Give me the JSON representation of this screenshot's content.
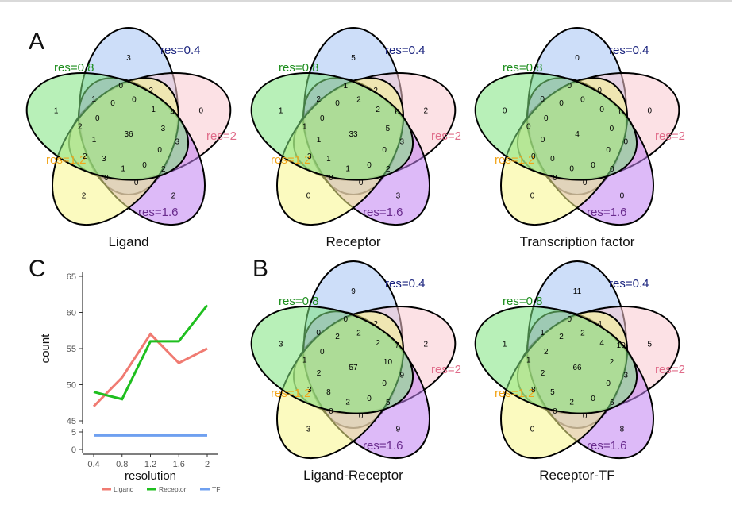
{
  "panels": {
    "a": "A",
    "b": "B",
    "c": "C"
  },
  "set_labels": [
    "res=0.4",
    "res=2",
    "res=1.6",
    "res=1.2",
    "res=0.8"
  ],
  "set_colors": {
    "fill": [
      "#a4c2f4",
      "#f9c8d0",
      "#c182f3",
      "#f7f58a",
      "#7ee37e"
    ],
    "label": [
      "#1a237e",
      "#e06c8a",
      "#6a2c8e",
      "#f2a51a",
      "#1e8e1e"
    ]
  },
  "venn": [
    {
      "title": "Ligand",
      "regions": {
        "only": [
          3,
          0,
          2,
          2,
          1
        ],
        "center": "36",
        "inner": [
          [
            "0",
            "0",
            "2",
            "1",
            "4",
            "3",
            "3",
            "0",
            "2",
            "0",
            "0",
            "1",
            "0",
            "3",
            "2",
            "1",
            "2",
            "0",
            "1",
            "0"
          ]
        ]
      }
    },
    {
      "title": "Receptor",
      "regions": {
        "only": [
          5,
          2,
          3,
          0,
          1
        ],
        "center": "33",
        "inner": [
          [
            "1",
            "2",
            "2",
            "2",
            "6",
            "5",
            "3",
            "0",
            "2",
            "0",
            "0",
            "1",
            "0",
            "1",
            "3",
            "1",
            "1",
            "0",
            "2",
            "0"
          ]
        ]
      }
    },
    {
      "title": "Transcription factor",
      "regions": {
        "only": [
          0,
          0,
          0,
          0,
          0
        ],
        "center": "4",
        "inner": [
          [
            "0",
            "0",
            "0",
            "0",
            "0",
            "0",
            "0",
            "0",
            "0",
            "0",
            "0",
            "0",
            "0",
            "0",
            "0",
            "0",
            "0",
            "0",
            "0",
            "0"
          ]
        ]
      }
    },
    {
      "title": "Ligand-Receptor",
      "regions": {
        "only": [
          9,
          2,
          9,
          3,
          3
        ],
        "center": "57",
        "inner": [
          [
            "0",
            "2",
            "2",
            "2",
            "7",
            "10",
            "9",
            "0",
            "5",
            "0",
            "0",
            "2",
            "0",
            "8",
            "3",
            "2",
            "1",
            "0",
            "0",
            "2"
          ]
        ]
      }
    },
    {
      "title": "Receptor-TF",
      "regions": {
        "only": [
          11,
          5,
          8,
          0,
          1
        ],
        "center": "66",
        "inner": [
          [
            "0",
            "2",
            "4",
            "4",
            "10",
            "2",
            "3",
            "0",
            "6",
            "0",
            "0",
            "2",
            "0",
            "5",
            "8",
            "2",
            "1",
            "2",
            "1",
            "2"
          ]
        ]
      }
    }
  ],
  "chart_data": {
    "type": "line",
    "x": [
      0.4,
      0.8,
      1.2,
      1.6,
      2
    ],
    "tick_labels_x": [
      "0.4",
      "0.8",
      "1.2",
      "1.6",
      "2"
    ],
    "xlabel": "resolution",
    "ylabel": "count",
    "ylim_upper": [
      45,
      65
    ],
    "ylim_lower": [
      0,
      5
    ],
    "ticks_upper": [
      "45",
      "50",
      "55",
      "60",
      "65"
    ],
    "ticks_lower": [
      "0",
      "5"
    ],
    "series": [
      {
        "name": "Ligand",
        "color": "#f07b72",
        "values": [
          47,
          51,
          57,
          53,
          55
        ]
      },
      {
        "name": "Receptor",
        "color": "#1fbf1f",
        "values": [
          49,
          48,
          56,
          56,
          61
        ]
      },
      {
        "name": "TF",
        "color": "#6fa0f0",
        "values": [
          4,
          4,
          4,
          4,
          4
        ]
      }
    ],
    "legend": "bottom"
  }
}
